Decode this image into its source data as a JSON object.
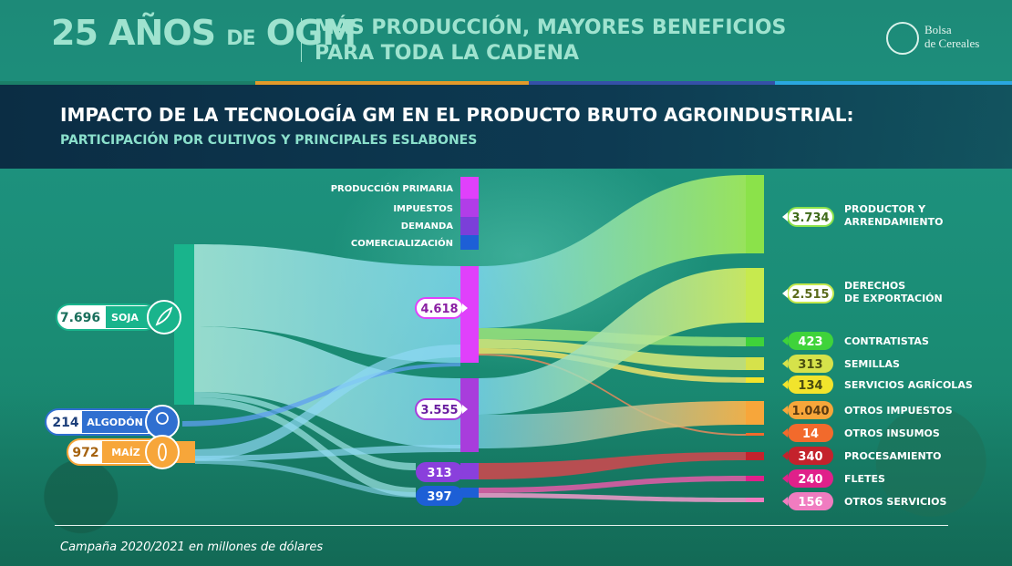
{
  "header": {
    "title_part1": "25 AÑOS",
    "title_part2": "DE",
    "title_part3": "OGM",
    "subtitle_line1": "MÁS PRODUCCIÓN, MAYORES BENEFICIOS",
    "subtitle_line2": "PARA TODA LA CADENA",
    "logo_line1": "Bolsa",
    "logo_line2": "de Cereales"
  },
  "title": "IMPACTO DE LA TECNOLOGÍA GM EN EL PRODUCTO BRUTO AGROINDUSTRIAL:",
  "subtitle": "PARTICIPACIÓN POR CULTIVOS Y PRINCIPALES ESLABONES",
  "legend": [
    {
      "label": "PRODUCCIÓN PRIMARIA",
      "color": "#e040fb"
    },
    {
      "label": "IMPUESTOS",
      "color": "#b13de8"
    },
    {
      "label": "DEMANDA",
      "color": "#7b3fd9"
    },
    {
      "label": "COMERCIALIZACIÓN",
      "color": "#1d5fd6"
    }
  ],
  "sources": [
    {
      "value": "7.696",
      "label": "SOJA",
      "icon": "soy-icon",
      "color": "#19b48c"
    },
    {
      "value": "214",
      "label": "ALGODÓN",
      "icon": "cotton-icon",
      "color": "#2f6fd0"
    },
    {
      "value": "972",
      "label": "MAÍZ",
      "icon": "corn-icon",
      "color": "#f7a63a"
    }
  ],
  "middle": [
    {
      "value": "4.618",
      "color": "#e040fb"
    },
    {
      "value": "3.555",
      "color": "#a83ddc"
    },
    {
      "value": "313",
      "color": "#8a3fdc"
    },
    {
      "value": "397",
      "color": "#1d5fd6"
    }
  ],
  "targets": [
    {
      "value": "3.734",
      "label_lines": [
        "PRODUCTOR Y",
        "ARRENDAMIENTO"
      ],
      "color": "#8be24a"
    },
    {
      "value": "2.515",
      "label_lines": [
        "DERECHOS",
        "DE EXPORTACIÓN"
      ],
      "color": "#c7ea4e"
    },
    {
      "value": "423",
      "label_lines": [
        "CONTRATISTAS"
      ],
      "color": "#3fd33a"
    },
    {
      "value": "313",
      "label_lines": [
        "SEMILLAS"
      ],
      "color": "#d6e24a"
    },
    {
      "value": "134",
      "label_lines": [
        "SERVICIOS AGRÍCOLAS"
      ],
      "color": "#f2e42c"
    },
    {
      "value": "1.040",
      "label_lines": [
        "OTROS IMPUESTOS"
      ],
      "color": "#f7a63a"
    },
    {
      "value": "14",
      "label_lines": [
        "OTROS INSUMOS"
      ],
      "color": "#f26a2c"
    },
    {
      "value": "340",
      "label_lines": [
        "PROCESAMIENTO"
      ],
      "color": "#c4222c"
    },
    {
      "value": "240",
      "label_lines": [
        "FLETES"
      ],
      "color": "#e0208a"
    },
    {
      "value": "156",
      "label_lines": [
        "OTROS SERVICIOS"
      ],
      "color": "#f07cc0"
    }
  ],
  "footnote": "Campaña 2020/2021 en millones de dólares"
}
